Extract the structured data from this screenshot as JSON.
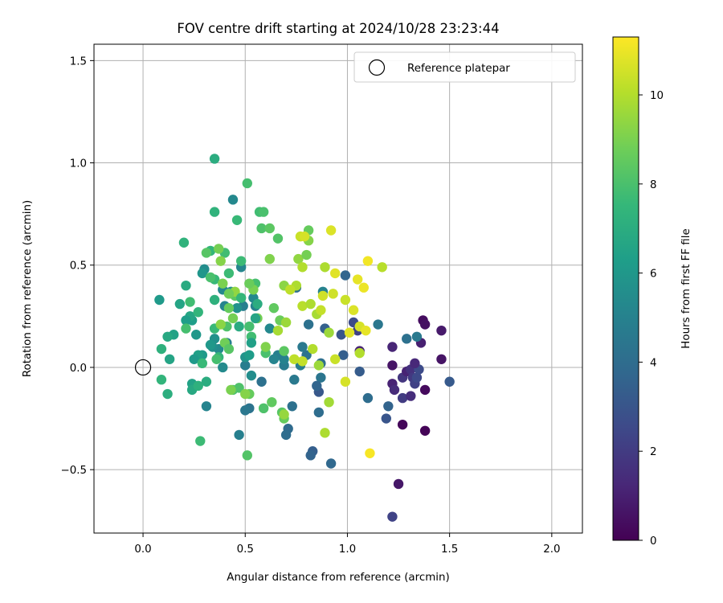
{
  "chart_data": {
    "type": "scatter",
    "title": "FOV centre drift starting at 2024/10/28 23:23:44",
    "xlabel": "Angular distance from reference (arcmin)",
    "ylabel": "Rotation from reference (arcmin)",
    "xlim": [
      -0.24,
      2.15
    ],
    "ylim": [
      -0.81,
      1.58
    ],
    "xticks": [
      0.0,
      0.5,
      1.0,
      1.5,
      2.0
    ],
    "xtick_labels": [
      "0.0",
      "0.5",
      "1.0",
      "1.5",
      "2.0"
    ],
    "yticks": [
      -0.5,
      0.0,
      0.5,
      1.0,
      1.5
    ],
    "ytick_labels": [
      "−0.5",
      "0.0",
      "0.5",
      "1.0",
      "1.5"
    ],
    "grid": true,
    "legend": {
      "location": "upper right",
      "entries": [
        "Reference platepar"
      ]
    },
    "reference_point": {
      "x": 0.0,
      "y": 0.0,
      "label": "Reference platepar"
    },
    "colorbar": {
      "label": "Hours from first FF file",
      "colormap": "viridis",
      "range": [
        0,
        11.3
      ],
      "ticks": [
        0,
        2,
        4,
        6,
        8,
        10
      ],
      "tick_labels": [
        "0",
        "2",
        "4",
        "6",
        "8",
        "10"
      ]
    },
    "colormap_stops": [
      "#440154",
      "#482878",
      "#3e4989",
      "#31688e",
      "#26828e",
      "#1f9e89",
      "#35b779",
      "#6ece58",
      "#b5de2b",
      "#fde725"
    ],
    "points": [
      {
        "x": 1.37,
        "y": 0.23,
        "t": 0.4
      },
      {
        "x": 1.38,
        "y": 0.21,
        "t": 0.5
      },
      {
        "x": 1.36,
        "y": 0.12,
        "t": 1.0
      },
      {
        "x": 1.46,
        "y": 0.18,
        "t": 0.8
      },
      {
        "x": 1.46,
        "y": 0.04,
        "t": 0.6
      },
      {
        "x": 1.38,
        "y": -0.11,
        "t": 0.3
      },
      {
        "x": 1.38,
        "y": -0.31,
        "t": 0.1
      },
      {
        "x": 1.27,
        "y": -0.28,
        "t": 0.2
      },
      {
        "x": 1.25,
        "y": -0.57,
        "t": 0.7
      },
      {
        "x": 1.22,
        "y": -0.73,
        "t": 2.3
      },
      {
        "x": 1.22,
        "y": 0.1,
        "t": 1.2
      },
      {
        "x": 1.22,
        "y": 0.01,
        "t": 0.6
      },
      {
        "x": 1.22,
        "y": -0.08,
        "t": 1.1
      },
      {
        "x": 1.23,
        "y": -0.11,
        "t": 1.4
      },
      {
        "x": 1.27,
        "y": -0.05,
        "t": 1.8
      },
      {
        "x": 1.27,
        "y": -0.15,
        "t": 2.0
      },
      {
        "x": 1.29,
        "y": -0.02,
        "t": 1.1
      },
      {
        "x": 1.31,
        "y": -0.01,
        "t": 1.6
      },
      {
        "x": 1.31,
        "y": -0.14,
        "t": 1.5
      },
      {
        "x": 1.32,
        "y": -0.05,
        "t": 1.9
      },
      {
        "x": 1.33,
        "y": -0.08,
        "t": 2.2
      },
      {
        "x": 1.34,
        "y": -0.05,
        "t": 2.5
      },
      {
        "x": 1.35,
        "y": -0.01,
        "t": 2.6
      },
      {
        "x": 1.33,
        "y": 0.02,
        "t": 1.3
      },
      {
        "x": 1.5,
        "y": -0.07,
        "t": 3.2
      },
      {
        "x": 1.34,
        "y": 0.15,
        "t": 4.6
      },
      {
        "x": 1.29,
        "y": 0.14,
        "t": 4.2
      },
      {
        "x": 1.15,
        "y": 0.21,
        "t": 4.5
      },
      {
        "x": 1.19,
        "y": -0.25,
        "t": 3.0
      },
      {
        "x": 1.2,
        "y": -0.19,
        "t": 3.6
      },
      {
        "x": 1.1,
        "y": -0.15,
        "t": 4.0
      },
      {
        "x": 1.06,
        "y": -0.02,
        "t": 3.3
      },
      {
        "x": 1.06,
        "y": 0.08,
        "t": 1.1
      },
      {
        "x": 1.05,
        "y": 0.18,
        "t": 2.2
      },
      {
        "x": 1.03,
        "y": 0.22,
        "t": 2.6
      },
      {
        "x": 0.99,
        "y": 0.45,
        "t": 3.7
      },
      {
        "x": 0.98,
        "y": 0.06,
        "t": 3.4
      },
      {
        "x": 0.97,
        "y": 0.16,
        "t": 3.0
      },
      {
        "x": 0.92,
        "y": -0.47,
        "t": 3.8
      },
      {
        "x": 0.88,
        "y": 0.37,
        "t": 5.0
      },
      {
        "x": 0.89,
        "y": 0.19,
        "t": 3.5
      },
      {
        "x": 0.87,
        "y": 0.02,
        "t": 4.1
      },
      {
        "x": 0.87,
        "y": -0.05,
        "t": 4.4
      },
      {
        "x": 0.86,
        "y": -0.12,
        "t": 3.1
      },
      {
        "x": 0.85,
        "y": -0.09,
        "t": 3.7
      },
      {
        "x": 0.86,
        "y": -0.22,
        "t": 4.0
      },
      {
        "x": 0.83,
        "y": -0.41,
        "t": 3.4
      },
      {
        "x": 0.82,
        "y": -0.43,
        "t": 3.6
      },
      {
        "x": 0.81,
        "y": 0.21,
        "t": 4.2
      },
      {
        "x": 0.8,
        "y": 0.06,
        "t": 4.3
      },
      {
        "x": 0.78,
        "y": 0.1,
        "t": 4.6
      },
      {
        "x": 0.77,
        "y": 0.01,
        "t": 4.8
      },
      {
        "x": 0.75,
        "y": 0.39,
        "t": 4.1
      },
      {
        "x": 0.74,
        "y": -0.06,
        "t": 4.6
      },
      {
        "x": 0.73,
        "y": -0.19,
        "t": 4.2
      },
      {
        "x": 0.71,
        "y": -0.3,
        "t": 3.9
      },
      {
        "x": 0.7,
        "y": -0.33,
        "t": 4.0
      },
      {
        "x": 0.69,
        "y": 0.01,
        "t": 4.7
      },
      {
        "x": 0.69,
        "y": 0.04,
        "t": 5.0
      },
      {
        "x": 0.66,
        "y": 0.06,
        "t": 4.9
      },
      {
        "x": 0.64,
        "y": 0.04,
        "t": 5.1
      },
      {
        "x": 0.62,
        "y": 0.19,
        "t": 5.3
      },
      {
        "x": 0.58,
        "y": -0.07,
        "t": 4.2
      },
      {
        "x": 0.55,
        "y": 0.3,
        "t": 5.0
      },
      {
        "x": 0.54,
        "y": 0.34,
        "t": 5.3
      },
      {
        "x": 0.53,
        "y": -0.04,
        "t": 5.5
      },
      {
        "x": 0.52,
        "y": -0.2,
        "t": 4.3
      },
      {
        "x": 0.5,
        "y": -0.21,
        "t": 4.5
      },
      {
        "x": 0.5,
        "y": 0.01,
        "t": 4.8
      },
      {
        "x": 0.49,
        "y": 0.3,
        "t": 4.9
      },
      {
        "x": 0.48,
        "y": 0.49,
        "t": 5.2
      },
      {
        "x": 0.47,
        "y": -0.33,
        "t": 4.9
      },
      {
        "x": 0.46,
        "y": 0.29,
        "t": 5.7
      },
      {
        "x": 0.44,
        "y": 0.82,
        "t": 5.3
      },
      {
        "x": 0.43,
        "y": 0.37,
        "t": 5.6
      },
      {
        "x": 0.41,
        "y": 0.12,
        "t": 4.9
      },
      {
        "x": 0.4,
        "y": 0.3,
        "t": 5.1
      },
      {
        "x": 0.39,
        "y": 0.38,
        "t": 5.3
      },
      {
        "x": 0.39,
        "y": 0.0,
        "t": 5.4
      },
      {
        "x": 0.37,
        "y": 0.09,
        "t": 5.4
      },
      {
        "x": 0.35,
        "y": 0.14,
        "t": 5.7
      },
      {
        "x": 0.34,
        "y": 0.1,
        "t": 5.6
      },
      {
        "x": 0.33,
        "y": 0.11,
        "t": 6.0
      },
      {
        "x": 0.3,
        "y": 0.48,
        "t": 5.5
      },
      {
        "x": 0.29,
        "y": 0.46,
        "t": 5.9
      },
      {
        "x": 0.31,
        "y": -0.19,
        "t": 5.1
      },
      {
        "x": 0.29,
        "y": 0.06,
        "t": 6.1
      },
      {
        "x": 0.27,
        "y": 0.06,
        "t": 6.4
      },
      {
        "x": 0.25,
        "y": 0.04,
        "t": 6.1
      },
      {
        "x": 0.26,
        "y": 0.16,
        "t": 6.0
      },
      {
        "x": 0.24,
        "y": 0.23,
        "t": 6.3
      },
      {
        "x": 0.23,
        "y": 0.25,
        "t": 6.7
      },
      {
        "x": 0.21,
        "y": 0.23,
        "t": 6.3
      },
      {
        "x": 0.18,
        "y": 0.31,
        "t": 6.6
      },
      {
        "x": 0.21,
        "y": 0.4,
        "t": 6.9
      },
      {
        "x": 0.15,
        "y": 0.16,
        "t": 6.5
      },
      {
        "x": 0.12,
        "y": 0.15,
        "t": 6.8
      },
      {
        "x": 0.08,
        "y": 0.33,
        "t": 6.1
      },
      {
        "x": 0.09,
        "y": 0.09,
        "t": 7.2
      },
      {
        "x": 0.13,
        "y": 0.04,
        "t": 6.6
      },
      {
        "x": 0.09,
        "y": -0.06,
        "t": 7.4
      },
      {
        "x": 0.12,
        "y": -0.13,
        "t": 7.1
      },
      {
        "x": 0.2,
        "y": 0.61,
        "t": 7.3
      },
      {
        "x": 0.24,
        "y": -0.08,
        "t": 6.5
      },
      {
        "x": 0.24,
        "y": -0.11,
        "t": 6.8
      },
      {
        "x": 0.27,
        "y": -0.09,
        "t": 7.2
      },
      {
        "x": 0.31,
        "y": -0.07,
        "t": 7.0
      },
      {
        "x": 0.28,
        "y": -0.36,
        "t": 7.7
      },
      {
        "x": 0.29,
        "y": 0.02,
        "t": 7.6
      },
      {
        "x": 0.27,
        "y": 0.27,
        "t": 7.4
      },
      {
        "x": 0.23,
        "y": 0.32,
        "t": 7.8
      },
      {
        "x": 0.21,
        "y": 0.19,
        "t": 7.9
      },
      {
        "x": 0.35,
        "y": 1.02,
        "t": 7.0
      },
      {
        "x": 0.35,
        "y": 0.76,
        "t": 7.3
      },
      {
        "x": 0.33,
        "y": 0.57,
        "t": 7.5
      },
      {
        "x": 0.35,
        "y": 0.43,
        "t": 7.6
      },
      {
        "x": 0.35,
        "y": 0.33,
        "t": 7.2
      },
      {
        "x": 0.35,
        "y": 0.19,
        "t": 7.6
      },
      {
        "x": 0.37,
        "y": 0.05,
        "t": 7.4
      },
      {
        "x": 0.36,
        "y": 0.04,
        "t": 7.9
      },
      {
        "x": 0.4,
        "y": 0.56,
        "t": 7.8
      },
      {
        "x": 0.41,
        "y": 0.2,
        "t": 8.1
      },
      {
        "x": 0.42,
        "y": 0.46,
        "t": 7.7
      },
      {
        "x": 0.44,
        "y": -0.11,
        "t": 8.0
      },
      {
        "x": 0.46,
        "y": 0.72,
        "t": 7.6
      },
      {
        "x": 0.47,
        "y": -0.1,
        "t": 8.1
      },
      {
        "x": 0.48,
        "y": 0.52,
        "t": 7.7
      },
      {
        "x": 0.51,
        "y": 0.9,
        "t": 7.9
      },
      {
        "x": 0.52,
        "y": 0.2,
        "t": 7.9
      },
      {
        "x": 0.51,
        "y": -0.43,
        "t": 8.2
      },
      {
        "x": 0.53,
        "y": 0.15,
        "t": 7.8
      },
      {
        "x": 0.57,
        "y": 0.76,
        "t": 7.8
      },
      {
        "x": 0.55,
        "y": 0.41,
        "t": 7.9
      },
      {
        "x": 0.58,
        "y": 0.68,
        "t": 8.1
      },
      {
        "x": 0.59,
        "y": 0.76,
        "t": 8.0
      },
      {
        "x": 0.6,
        "y": 0.07,
        "t": 8.0
      },
      {
        "x": 0.62,
        "y": 0.68,
        "t": 8.4
      },
      {
        "x": 0.64,
        "y": 0.29,
        "t": 8.5
      },
      {
        "x": 0.66,
        "y": 0.63,
        "t": 8.2
      },
      {
        "x": 0.68,
        "y": -0.22,
        "t": 8.3
      },
      {
        "x": 0.69,
        "y": -0.25,
        "t": 8.6
      },
      {
        "x": 0.67,
        "y": 0.23,
        "t": 8.7
      },
      {
        "x": 0.69,
        "y": 0.08,
        "t": 8.4
      },
      {
        "x": 0.59,
        "y": -0.2,
        "t": 8.1
      },
      {
        "x": 0.63,
        "y": -0.17,
        "t": 8.5
      },
      {
        "x": 0.52,
        "y": -0.13,
        "t": 8.6
      },
      {
        "x": 0.54,
        "y": 0.38,
        "t": 9.0
      },
      {
        "x": 0.56,
        "y": 0.24,
        "t": 8.9
      },
      {
        "x": 0.6,
        "y": 0.1,
        "t": 9.1
      },
      {
        "x": 0.62,
        "y": 0.53,
        "t": 9.1
      },
      {
        "x": 0.69,
        "y": 0.4,
        "t": 9.3
      },
      {
        "x": 0.76,
        "y": 0.53,
        "t": 9.4
      },
      {
        "x": 0.81,
        "y": 0.67,
        "t": 8.6
      },
      {
        "x": 0.81,
        "y": 0.62,
        "t": 9.2
      },
      {
        "x": 0.8,
        "y": 0.55,
        "t": 8.9
      },
      {
        "x": 0.7,
        "y": 0.22,
        "t": 9.6
      },
      {
        "x": 0.66,
        "y": 0.18,
        "t": 9.8
      },
      {
        "x": 0.75,
        "y": 0.4,
        "t": 9.9
      },
      {
        "x": 0.78,
        "y": 0.49,
        "t": 10.0
      },
      {
        "x": 0.77,
        "y": 0.64,
        "t": 10.4
      },
      {
        "x": 0.79,
        "y": 0.64,
        "t": 10.6
      },
      {
        "x": 0.78,
        "y": 0.3,
        "t": 10.1
      },
      {
        "x": 0.82,
        "y": 0.31,
        "t": 9.9
      },
      {
        "x": 0.72,
        "y": 0.38,
        "t": 10.2
      },
      {
        "x": 0.78,
        "y": 0.03,
        "t": 10.3
      },
      {
        "x": 0.74,
        "y": 0.04,
        "t": 10.2
      },
      {
        "x": 0.83,
        "y": 0.09,
        "t": 10.0
      },
      {
        "x": 0.85,
        "y": 0.26,
        "t": 9.8
      },
      {
        "x": 0.87,
        "y": 0.28,
        "t": 10.3
      },
      {
        "x": 0.88,
        "y": 0.35,
        "t": 10.5
      },
      {
        "x": 0.89,
        "y": 0.49,
        "t": 9.9
      },
      {
        "x": 0.91,
        "y": 0.17,
        "t": 9.6
      },
      {
        "x": 0.91,
        "y": -0.17,
        "t": 9.7
      },
      {
        "x": 0.89,
        "y": -0.32,
        "t": 9.9
      },
      {
        "x": 0.92,
        "y": 0.67,
        "t": 10.7
      },
      {
        "x": 0.93,
        "y": 0.36,
        "t": 10.5
      },
      {
        "x": 0.94,
        "y": 0.46,
        "t": 10.8
      },
      {
        "x": 0.94,
        "y": 0.04,
        "t": 10.4
      },
      {
        "x": 0.99,
        "y": 0.33,
        "t": 10.4
      },
      {
        "x": 0.99,
        "y": -0.07,
        "t": 10.6
      },
      {
        "x": 1.01,
        "y": 0.17,
        "t": 10.8
      },
      {
        "x": 1.03,
        "y": 0.28,
        "t": 10.7
      },
      {
        "x": 1.05,
        "y": 0.43,
        "t": 10.9
      },
      {
        "x": 1.06,
        "y": 0.2,
        "t": 10.6
      },
      {
        "x": 1.08,
        "y": 0.39,
        "t": 11.0
      },
      {
        "x": 1.09,
        "y": 0.18,
        "t": 10.9
      },
      {
        "x": 1.1,
        "y": 0.52,
        "t": 11.1
      },
      {
        "x": 1.11,
        "y": -0.42,
        "t": 11.2
      },
      {
        "x": 1.17,
        "y": 0.49,
        "t": 10.1
      },
      {
        "x": 1.06,
        "y": 0.07,
        "t": 10.0
      },
      {
        "x": 0.86,
        "y": 0.01,
        "t": 9.6
      },
      {
        "x": 0.69,
        "y": -0.23,
        "t": 9.5
      },
      {
        "x": 0.5,
        "y": -0.13,
        "t": 9.2
      },
      {
        "x": 0.43,
        "y": -0.11,
        "t": 9.0
      },
      {
        "x": 0.31,
        "y": 0.56,
        "t": 8.3
      },
      {
        "x": 0.37,
        "y": 0.58,
        "t": 8.9
      },
      {
        "x": 0.38,
        "y": 0.52,
        "t": 9.2
      },
      {
        "x": 0.39,
        "y": 0.41,
        "t": 9.0
      },
      {
        "x": 0.38,
        "y": 0.21,
        "t": 9.3
      },
      {
        "x": 0.4,
        "y": 0.12,
        "t": 8.8
      },
      {
        "x": 0.42,
        "y": 0.29,
        "t": 8.6
      },
      {
        "x": 0.44,
        "y": 0.24,
        "t": 8.9
      },
      {
        "x": 0.45,
        "y": 0.35,
        "t": 8.4
      },
      {
        "x": 0.52,
        "y": 0.41,
        "t": 8.7
      },
      {
        "x": 0.45,
        "y": 0.37,
        "t": 9.4
      },
      {
        "x": 0.42,
        "y": 0.09,
        "t": 8.3
      },
      {
        "x": 0.33,
        "y": 0.44,
        "t": 8.0
      },
      {
        "x": 0.42,
        "y": 0.36,
        "t": 8.8
      },
      {
        "x": 0.48,
        "y": 0.34,
        "t": 7.5
      },
      {
        "x": 0.56,
        "y": 0.31,
        "t": 7.0
      },
      {
        "x": 0.55,
        "y": 0.24,
        "t": 6.6
      },
      {
        "x": 0.47,
        "y": 0.2,
        "t": 6.9
      },
      {
        "x": 0.53,
        "y": 0.12,
        "t": 6.4
      },
      {
        "x": 0.5,
        "y": 0.05,
        "t": 5.8
      },
      {
        "x": 0.52,
        "y": 0.06,
        "t": 6.2
      }
    ]
  }
}
